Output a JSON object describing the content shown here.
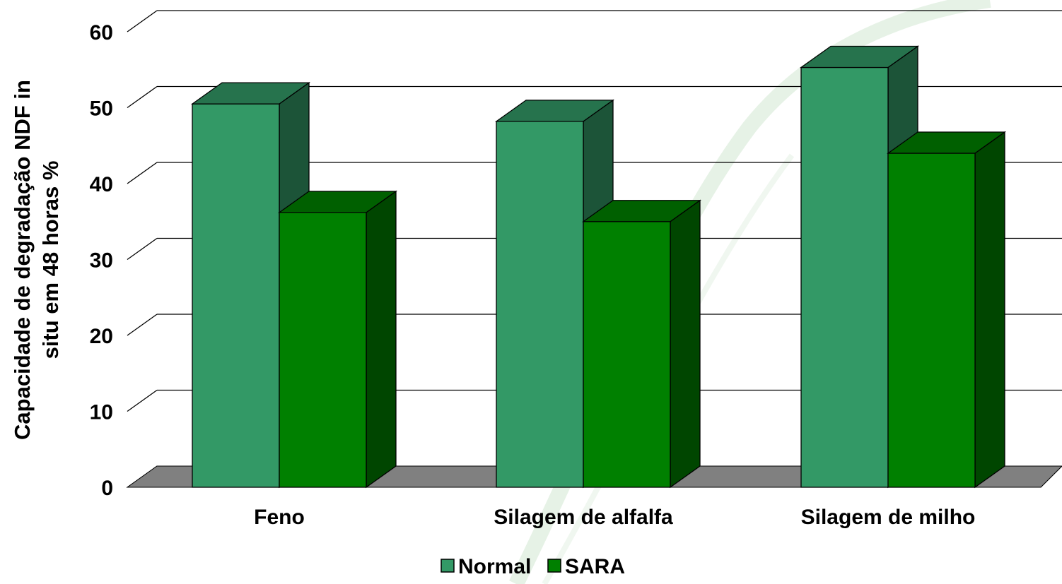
{
  "chart_data": {
    "type": "bar",
    "title": "",
    "categories": [
      "Feno",
      "Silagem de alfalfa",
      "Silagem de milho"
    ],
    "series": [
      {
        "name": "Normal",
        "values": [
          50.5,
          48.2,
          55.3
        ],
        "color": "#339966"
      },
      {
        "name": "SARA",
        "values": [
          36.2,
          35.0,
          44.0
        ],
        "color": "#008000"
      }
    ],
    "xlabel": "",
    "ylabel_lines": [
      "Capacidade de degradação NDF in",
      "situ em 48 horas %"
    ],
    "ylim": [
      0,
      60
    ],
    "yticks": [
      0,
      10,
      20,
      30,
      40,
      50,
      60
    ],
    "grid": true,
    "legend_position": "bottom",
    "style": "3d-columns"
  }
}
